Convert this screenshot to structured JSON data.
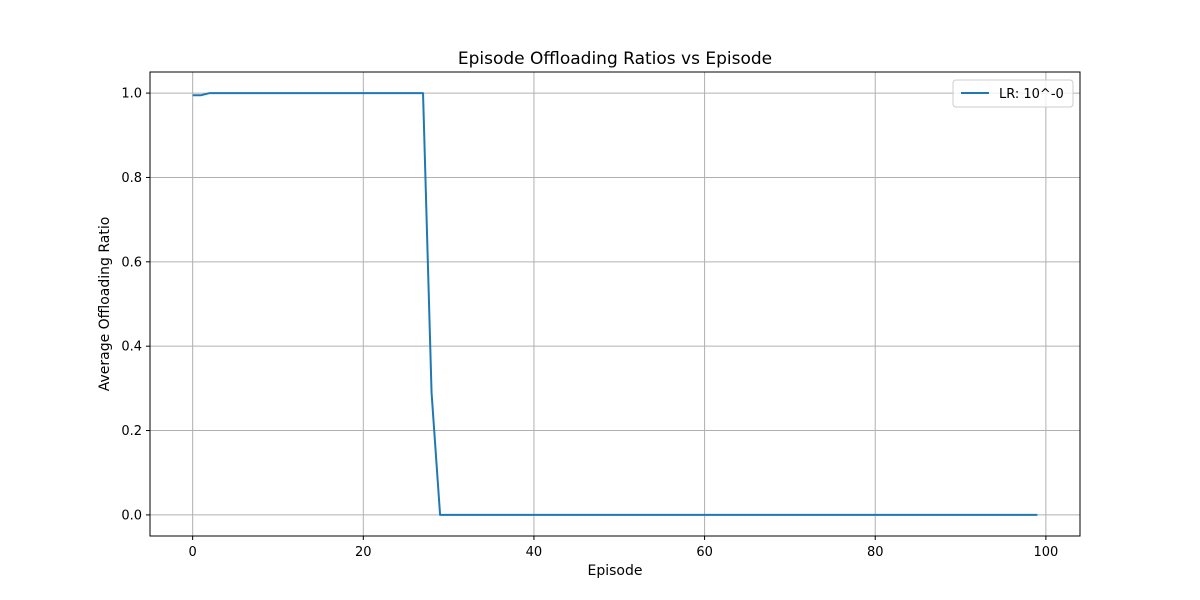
{
  "chart_data": {
    "type": "line",
    "title": "Episode Offloading Ratios vs Episode",
    "xlabel": "Episode",
    "ylabel": "Average Offloading Ratio",
    "xlim": [
      -5,
      104
    ],
    "ylim": [
      -0.05,
      1.05
    ],
    "xticks": [
      0,
      20,
      40,
      60,
      80,
      100
    ],
    "yticks": [
      0.0,
      0.2,
      0.4,
      0.6,
      0.8,
      1.0
    ],
    "grid": true,
    "legend_position": "top-right",
    "series": [
      {
        "name": "LR: 10^-0",
        "color": "#1f77b4",
        "x": [
          0,
          1,
          2,
          3,
          27,
          28,
          29,
          99
        ],
        "y": [
          0.995,
          0.995,
          1.0,
          1.0,
          1.0,
          0.29,
          0.0,
          0.0
        ]
      }
    ]
  }
}
